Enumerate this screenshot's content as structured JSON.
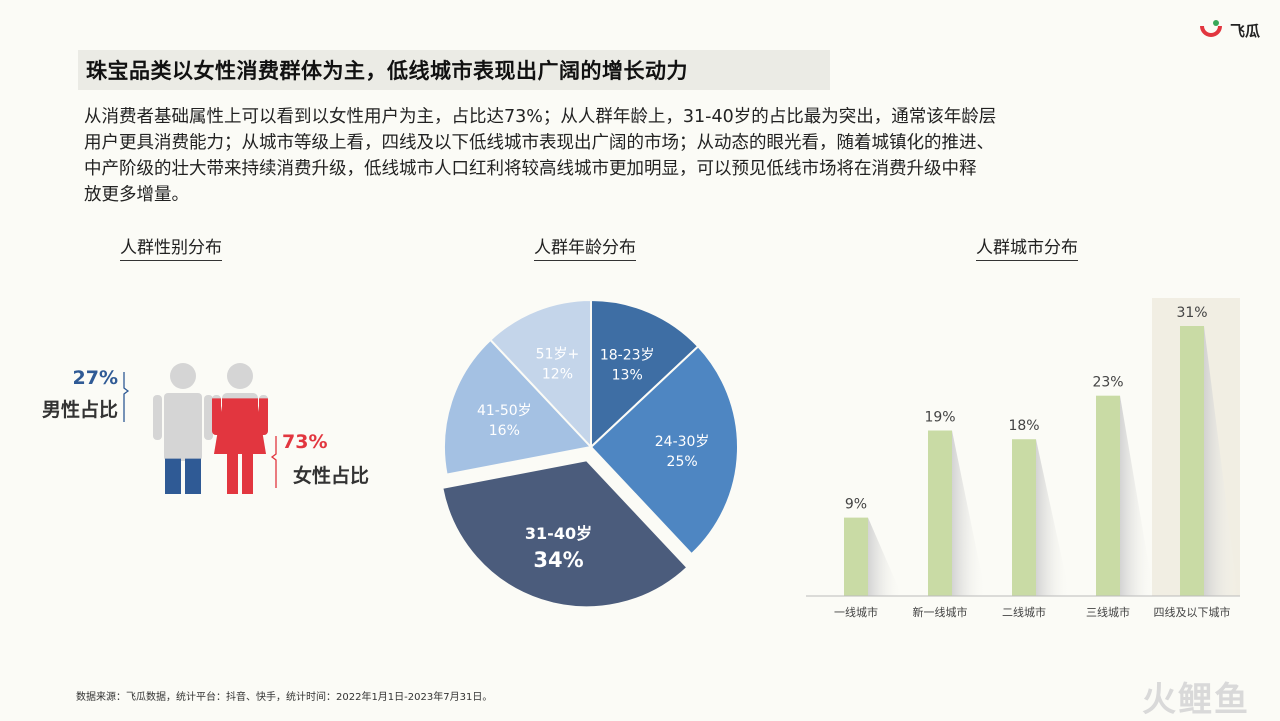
{
  "header": {
    "title": "珠宝品类以女性消费群体为主，低线城市表现出广阔的增长动力",
    "logo_text": "飞瓜"
  },
  "intro_lines": [
    "从消费者基础属性上可以看到以女性用户为主，占比达73%；从人群年龄上，31-40岁的占比最为突出，通常该年龄层",
    "用户更具消费能力；从城市等级上看，四线及以下低线城市表现出广阔的市场；从动态的眼光看，随着城镇化的推进、",
    "中产阶级的壮大带来持续消费升级，低线城市人口红利将较高线城市更加明显，可以预见低线市场将在消费升级中释",
    "放更多增量。"
  ],
  "sections": {
    "gender_title": "人群性别分布",
    "age_title": "人群年龄分布",
    "city_title": "人群城市分布"
  },
  "colors": {
    "male": "#2f5a95",
    "female": "#e2363f",
    "figure_gray": "#d5d5d5",
    "bar": "#c9dba5"
  },
  "chart_data": [
    {
      "type": "pie",
      "title": "人群性别分布",
      "categories": [
        "男性占比",
        "女性占比"
      ],
      "values": [
        27,
        73
      ],
      "labels": [
        "27%",
        "73%"
      ]
    },
    {
      "type": "pie",
      "title": "人群年龄分布",
      "categories": [
        "18-23岁",
        "24-30岁",
        "31-40岁",
        "41-50岁",
        "51岁+"
      ],
      "values": [
        13,
        25,
        34,
        16,
        12
      ],
      "labels": [
        "13%",
        "25%",
        "34%",
        "16%",
        "12%"
      ],
      "colors": [
        "#3e6ea4",
        "#4e86c2",
        "#4b5c7c",
        "#a4c1e3",
        "#c4d5ea"
      ],
      "exploded": "31-40岁"
    },
    {
      "type": "bar",
      "title": "人群城市分布",
      "categories": [
        "一线城市",
        "新一线城市",
        "二线城市",
        "三线城市",
        "四线及以下城市"
      ],
      "values": [
        9,
        19,
        18,
        23,
        31
      ],
      "labels": [
        "9%",
        "19%",
        "18%",
        "23%",
        "31%"
      ],
      "ylim": [
        0,
        31
      ],
      "highlight": "四线及以下城市"
    }
  ],
  "footer": {
    "source": "数据来源：飞瓜数据，统计平台：抖音、快手，统计时间：2022年1月1日-2023年7月31日。",
    "watermark": "火鲤鱼"
  }
}
